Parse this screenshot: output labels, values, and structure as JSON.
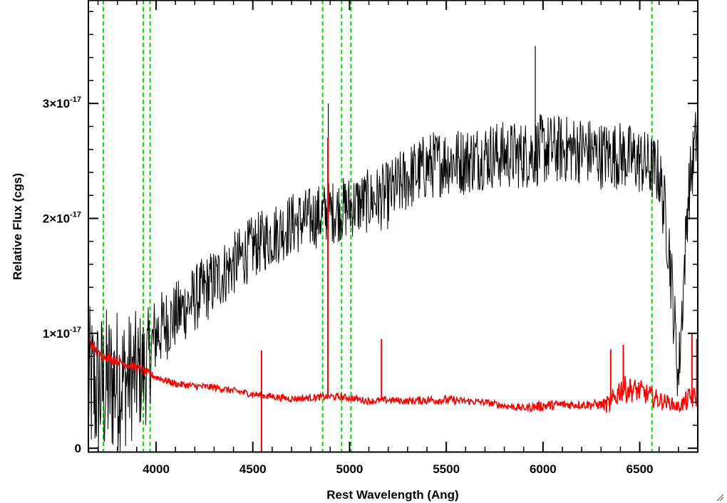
{
  "chart_data": {
    "type": "line",
    "xlabel": "Rest Wavelength (Ang)",
    "ylabel": "Relative Flux (cgs)",
    "xlim": [
      3650,
      6800
    ],
    "ylim": [
      -3e-19,
      3.9e-17
    ],
    "x_ticks": [
      {
        "value": 4000,
        "label": "4000"
      },
      {
        "value": 4500,
        "label": "4500"
      },
      {
        "value": 5000,
        "label": "5000"
      },
      {
        "value": 5500,
        "label": "5500"
      },
      {
        "value": 6000,
        "label": "6000"
      },
      {
        "value": 6500,
        "label": "6500"
      }
    ],
    "y_ticks": [
      {
        "value": 0,
        "mantissa": "0",
        "exponent": ""
      },
      {
        "value": 1e-17,
        "mantissa": "1×10",
        "exponent": "-17"
      },
      {
        "value": 2e-17,
        "mantissa": "2×10",
        "exponent": "-17"
      },
      {
        "value": 3e-17,
        "mantissa": "3×10",
        "exponent": "-17"
      }
    ],
    "reference_lines": {
      "color": "#00dd00",
      "style": "dashed",
      "x": [
        3727,
        3934,
        3969,
        4861,
        4959,
        5007,
        6563
      ]
    },
    "series": [
      {
        "color": "#000000",
        "noisy": true,
        "x": [
          3650,
          3700,
          3750,
          3800,
          3850,
          3900,
          3950,
          4000,
          4100,
          4200,
          4300,
          4400,
          4500,
          4600,
          4700,
          4800,
          4900,
          5000,
          5100,
          5200,
          5300,
          5400,
          5500,
          5600,
          5700,
          5800,
          5900,
          6000,
          6100,
          6200,
          6300,
          6400,
          6500,
          6600,
          6650,
          6700,
          6750,
          6800
        ],
        "y": [
          5.5e-18,
          5e-18,
          5.5e-18,
          6e-18,
          6e-18,
          6.5e-18,
          7e-18,
          1e-17,
          1.15e-17,
          1.3e-17,
          1.45e-17,
          1.6e-17,
          1.75e-17,
          1.85e-17,
          1.95e-17,
          2e-17,
          2.05e-17,
          2.1e-17,
          2.15e-17,
          2.2e-17,
          2.35e-17,
          2.45e-17,
          2.5e-17,
          2.5e-17,
          2.55e-17,
          2.55e-17,
          2.55e-17,
          2.6e-17,
          2.6e-17,
          2.6e-17,
          2.55e-17,
          2.55e-17,
          2.5e-17,
          2.4e-17,
          1.8e-17,
          6e-18,
          2.2e-17,
          2.8e-17
        ],
        "noise_amplitude": [
          7e-18,
          7e-18,
          7e-18,
          6.5e-18,
          6e-18,
          5.5e-18,
          5e-18,
          3.5e-18,
          3e-18,
          3e-18,
          3e-18,
          2.8e-18,
          2.8e-18,
          2.8e-18,
          2.8e-18,
          2.8e-18,
          2.8e-18,
          2.8e-18,
          2.8e-18,
          3e-18,
          3e-18,
          3e-18,
          3e-18,
          3e-18,
          3e-18,
          3e-18,
          3e-18,
          3.2e-18,
          3e-18,
          3e-18,
          3e-18,
          3e-18,
          3e-18,
          3e-18,
          3.5e-18,
          3e-18,
          3e-18,
          3e-18
        ],
        "spikes": [
          {
            "x": 4890,
            "y": 3e-17
          },
          {
            "x": 5960,
            "y": 3.5e-17
          }
        ]
      },
      {
        "color": "#ff0000",
        "noisy": true,
        "x": [
          3650,
          3700,
          3800,
          3900,
          4000,
          4100,
          4200,
          4300,
          4400,
          4500,
          4600,
          4700,
          4800,
          4900,
          5000,
          5100,
          5200,
          5300,
          5400,
          5500,
          5600,
          5700,
          5800,
          5900,
          6000,
          6100,
          6200,
          6300,
          6350,
          6400,
          6500,
          6600,
          6650,
          6700,
          6750,
          6800
        ],
        "y": [
          9.5e-18,
          8.2e-18,
          7.6e-18,
          7e-18,
          6.2e-18,
          5.6e-18,
          5.4e-18,
          5.3e-18,
          5e-18,
          4.7e-18,
          4.5e-18,
          4.3e-18,
          4.4e-18,
          4.5e-18,
          4.4e-18,
          4.1e-18,
          4.2e-18,
          4.1e-18,
          4.2e-18,
          4.2e-18,
          4.1e-18,
          4e-18,
          3.7e-18,
          3.5e-18,
          3.7e-18,
          3.8e-18,
          3.8e-18,
          3.8e-18,
          3.8e-18,
          5.2e-18,
          5e-18,
          4.2e-18,
          4e-18,
          3.6e-18,
          4.2e-18,
          4.5e-18
        ],
        "noise_amplitude": [
          5e-19,
          4e-19,
          4e-19,
          4e-19,
          3e-19,
          3e-19,
          3e-19,
          3e-19,
          3e-19,
          3e-19,
          3e-19,
          3e-19,
          3e-19,
          3e-19,
          3e-19,
          3e-19,
          3e-19,
          3e-19,
          4e-19,
          4e-19,
          3e-19,
          3e-19,
          3e-19,
          3e-19,
          5e-19,
          4e-19,
          4e-19,
          4e-19,
          1e-18,
          1.2e-18,
          1e-18,
          8e-19,
          6e-19,
          5e-19,
          1e-18,
          1e-18
        ],
        "spikes": [
          {
            "x": 4545,
            "y": -3e-19
          },
          {
            "x": 4545,
            "y": 8.5e-18
          },
          {
            "x": 4888,
            "y": 2.7e-17
          },
          {
            "x": 5165,
            "y": 9.5e-18
          },
          {
            "x": 6350,
            "y": 8.6e-18
          },
          {
            "x": 6415,
            "y": 9e-18
          },
          {
            "x": 6770,
            "y": 1e-17
          },
          {
            "x": 6795,
            "y": 9.5e-18
          }
        ]
      }
    ]
  }
}
